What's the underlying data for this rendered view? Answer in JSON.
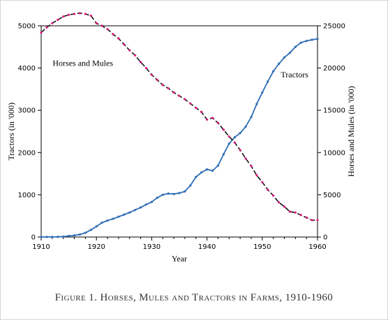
{
  "caption": "Figure 1. Horses, Mules and Tractors in Farms, 1910-1960",
  "chart_data": {
    "type": "line",
    "title": "",
    "xlabel": "Year",
    "ylabel_left": "Tractors (in '000)",
    "ylabel_right": "Horses and Mules (in '000)",
    "xlim": [
      1910,
      1960
    ],
    "ylim_left": [
      0,
      5000
    ],
    "ylim_right": [
      0,
      25000
    ],
    "x_ticks": [
      "1910",
      "1920",
      "1930",
      "1940",
      "1950",
      "1960"
    ],
    "y_ticks_left": [
      "0",
      "1000",
      "2000",
      "3000",
      "4000",
      "5000"
    ],
    "y_ticks_right": [
      "0",
      "5000",
      "10000",
      "15000",
      "20000",
      "25000"
    ],
    "grid": false,
    "legend": "none",
    "series": [
      {
        "name": "Tractors",
        "axis": "left",
        "color": "#2f6db5",
        "style": "solid line with dot markers",
        "x": [
          1910,
          1911,
          1912,
          1913,
          1914,
          1915,
          1916,
          1917,
          1918,
          1919,
          1920,
          1921,
          1922,
          1923,
          1924,
          1925,
          1926,
          1927,
          1928,
          1929,
          1930,
          1931,
          1932,
          1933,
          1934,
          1935,
          1936,
          1937,
          1938,
          1939,
          1940,
          1941,
          1942,
          1943,
          1944,
          1945,
          1946,
          1947,
          1948,
          1949,
          1950,
          1951,
          1952,
          1953,
          1954,
          1955,
          1956,
          1957,
          1958,
          1959,
          1960
        ],
        "y": [
          1,
          2,
          3,
          5,
          10,
          25,
          40,
          60,
          100,
          170,
          250,
          340,
          390,
          430,
          480,
          530,
          580,
          640,
          700,
          770,
          830,
          930,
          1000,
          1030,
          1020,
          1040,
          1080,
          1220,
          1420,
          1530,
          1600,
          1570,
          1690,
          1960,
          2210,
          2360,
          2460,
          2610,
          2840,
          3150,
          3420,
          3680,
          3920,
          4100,
          4250,
          4360,
          4500,
          4600,
          4640,
          4670,
          4690
        ]
      },
      {
        "name": "Horses and Mules",
        "axis": "right",
        "color": "#111111",
        "marker_color": "#e0197d",
        "style": "dashed line with dot markers",
        "x": [
          1910,
          1911,
          1912,
          1913,
          1914,
          1915,
          1916,
          1917,
          1918,
          1919,
          1920,
          1921,
          1922,
          1923,
          1924,
          1925,
          1926,
          1927,
          1928,
          1929,
          1930,
          1931,
          1932,
          1933,
          1934,
          1935,
          1936,
          1937,
          1938,
          1939,
          1940,
          1941,
          1942,
          1943,
          1944,
          1945,
          1946,
          1947,
          1948,
          1949,
          1950,
          1951,
          1952,
          1953,
          1954,
          1955,
          1956,
          1957,
          1958,
          1959,
          1960
        ],
        "y": [
          24200,
          24800,
          25300,
          25700,
          26100,
          26300,
          26400,
          26500,
          26400,
          26200,
          25300,
          25000,
          24600,
          24000,
          23500,
          22800,
          22100,
          21500,
          20700,
          20000,
          19200,
          18600,
          18000,
          17600,
          17100,
          16700,
          16300,
          15800,
          15300,
          14800,
          13900,
          14100,
          13500,
          12700,
          11900,
          11200,
          10300,
          9300,
          8400,
          7300,
          6500,
          5600,
          4900,
          4100,
          3600,
          3000,
          2900,
          2600,
          2300,
          2000,
          2000
        ]
      }
    ],
    "annotations": [
      {
        "text": "Horses and Mules",
        "x": 1918,
        "y_left": 4050
      },
      {
        "text": "Tractors",
        "x": 1955,
        "y_left": 3780
      }
    ]
  }
}
